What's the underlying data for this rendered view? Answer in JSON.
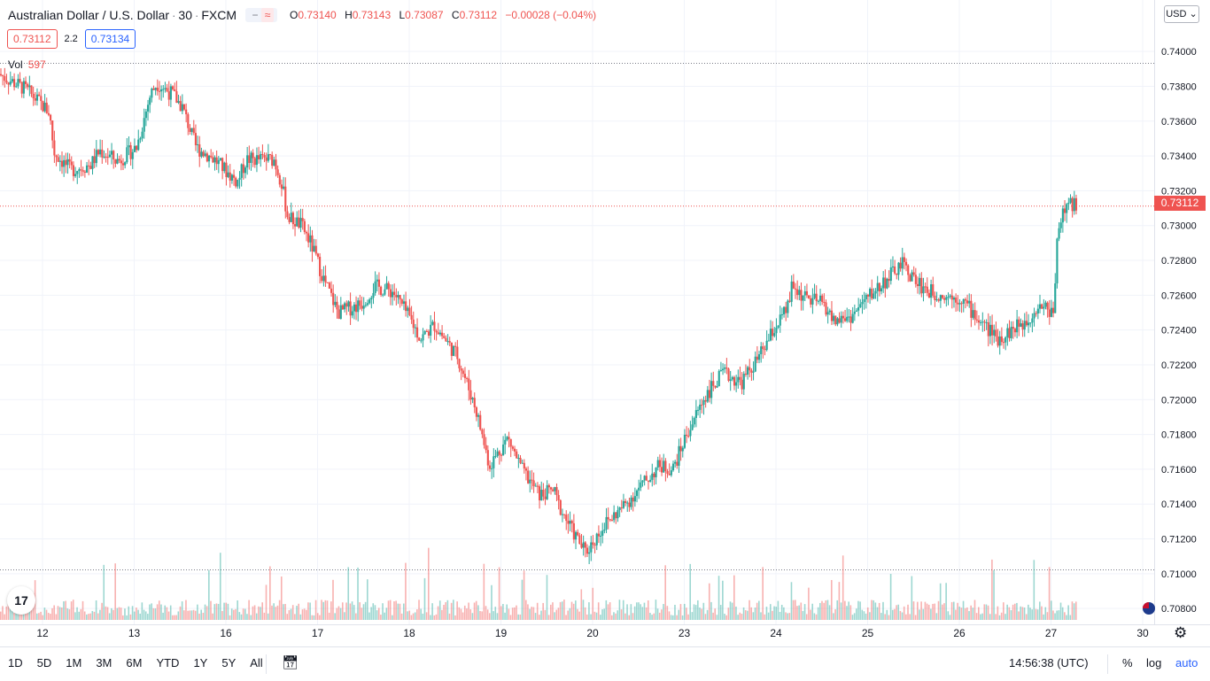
{
  "header": {
    "symbol": "Australian Dollar / U.S. Dollar",
    "sep": "·",
    "interval": "30",
    "exchange": "FXCM",
    "ohlc": {
      "o_label": "O",
      "o": "0.73140",
      "h_label": "H",
      "h": "0.73143",
      "l_label": "L",
      "l": "0.73087",
      "c_label": "C",
      "c": "0.73112",
      "change": "−0.00028 (−0.04%)"
    }
  },
  "trade": {
    "sell": "0.73112",
    "spread": "2.2",
    "buy": "0.73134"
  },
  "volume": {
    "label": "Vol",
    "value": "597"
  },
  "currency_button": "USD",
  "last_price": "0.73112",
  "bottom": {
    "ranges": [
      "1D",
      "5D",
      "1M",
      "3M",
      "6M",
      "YTD",
      "1Y",
      "5Y",
      "All"
    ],
    "clock": "14:56:38 (UTC)",
    "percent": "%",
    "log": "log",
    "auto": "auto"
  },
  "colors": {
    "up": "#26a69a",
    "down": "#ef5350",
    "last_price": "#ef5350",
    "accent": "#2962ff"
  },
  "icons": {
    "logo": "tv-logo-icon",
    "settings": "gear-icon",
    "calendar": "calendar-icon",
    "flag": "au-flag-icon"
  },
  "chart_data": {
    "type": "candlestick",
    "y_range": [
      0.7075,
      0.7425
    ],
    "y_ticks": [
      "0.74000",
      "0.73800",
      "0.73600",
      "0.73400",
      "0.73200",
      "0.73000",
      "0.72800",
      "0.72600",
      "0.72400",
      "0.72200",
      "0.72000",
      "0.71800",
      "0.71600",
      "0.71400",
      "0.71200",
      "0.71000",
      "0.70800"
    ],
    "x_ticks": [
      "12",
      "13",
      "16",
      "17",
      "18",
      "19",
      "20",
      "23",
      "24",
      "25",
      "26",
      "27",
      "30"
    ],
    "session_markers": [
      0,
      1,
      2,
      3,
      4,
      5,
      6,
      7,
      8,
      9,
      10,
      11,
      12
    ],
    "path": [
      [
        0,
        0.7387
      ],
      [
        0.3,
        0.7378
      ],
      [
        0.55,
        0.7365
      ],
      [
        0.6,
        0.7342
      ],
      [
        0.78,
        0.7332
      ],
      [
        1.0,
        0.7335
      ],
      [
        1.1,
        0.7343
      ],
      [
        1.3,
        0.7337
      ],
      [
        1.5,
        0.7345
      ],
      [
        1.65,
        0.7375
      ],
      [
        1.72,
        0.7382
      ],
      [
        1.9,
        0.7375
      ],
      [
        2.0,
        0.7368
      ],
      [
        2.15,
        0.7345
      ],
      [
        2.35,
        0.7338
      ],
      [
        2.6,
        0.7325
      ],
      [
        2.7,
        0.7338
      ],
      [
        3.0,
        0.7338
      ],
      [
        3.08,
        0.7325
      ],
      [
        3.15,
        0.7305
      ],
      [
        3.3,
        0.73
      ],
      [
        3.4,
        0.729
      ],
      [
        3.55,
        0.7268
      ],
      [
        3.7,
        0.725
      ],
      [
        3.95,
        0.7255
      ],
      [
        4.1,
        0.7265
      ],
      [
        4.3,
        0.7262
      ],
      [
        4.5,
        0.7245
      ],
      [
        4.6,
        0.7235
      ],
      [
        4.75,
        0.7243
      ],
      [
        5.0,
        0.7225
      ],
      [
        5.2,
        0.7195
      ],
      [
        5.35,
        0.7162
      ],
      [
        5.55,
        0.7178
      ],
      [
        5.7,
        0.716
      ],
      [
        5.9,
        0.7145
      ],
      [
        6.05,
        0.7148
      ],
      [
        6.1,
        0.714
      ],
      [
        6.25,
        0.7125
      ],
      [
        6.4,
        0.7112
      ],
      [
        6.6,
        0.7128
      ],
      [
        6.8,
        0.7138
      ],
      [
        7.0,
        0.715
      ],
      [
        7.2,
        0.7162
      ],
      [
        7.35,
        0.716
      ],
      [
        7.5,
        0.718
      ],
      [
        7.7,
        0.7202
      ],
      [
        7.9,
        0.7215
      ],
      [
        8.1,
        0.721
      ],
      [
        8.3,
        0.7225
      ],
      [
        8.45,
        0.724
      ],
      [
        8.6,
        0.7252
      ],
      [
        8.65,
        0.7265
      ],
      [
        8.8,
        0.7258
      ],
      [
        9.0,
        0.7255
      ],
      [
        9.1,
        0.7245
      ],
      [
        9.3,
        0.7248
      ],
      [
        9.5,
        0.726
      ],
      [
        9.7,
        0.727
      ],
      [
        9.85,
        0.7278
      ],
      [
        10.0,
        0.7268
      ],
      [
        10.15,
        0.7262
      ],
      [
        10.3,
        0.726
      ],
      [
        10.5,
        0.7258
      ],
      [
        10.7,
        0.7245
      ],
      [
        10.9,
        0.7235
      ],
      [
        11.05,
        0.724
      ],
      [
        11.2,
        0.7245
      ],
      [
        11.35,
        0.7255
      ],
      [
        11.5,
        0.725
      ],
      [
        11.55,
        0.73
      ],
      [
        11.65,
        0.7312
      ],
      [
        11.75,
        0.7311
      ]
    ],
    "volume_range": [
      0,
      1000
    ],
    "volume_label_value": 597
  }
}
